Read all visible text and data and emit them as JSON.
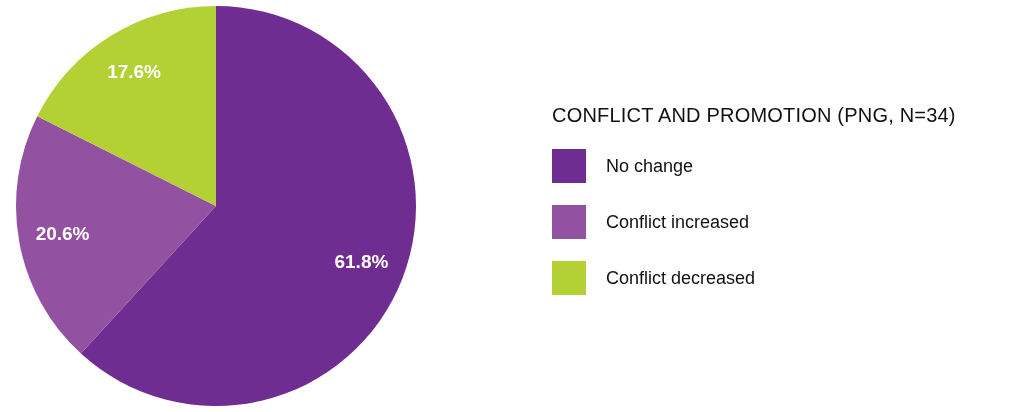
{
  "chart_data": {
    "type": "pie",
    "legend_title": "CONFLICT AND PROMOTION (PNG, N=34)",
    "categories": [
      "No change",
      "Conflict increased",
      "Conflict decreased"
    ],
    "values": [
      61.8,
      20.6,
      17.6
    ],
    "colors": [
      "#6f2c91",
      "#9251a1",
      "#b3d135"
    ],
    "value_labels": [
      "61.8%",
      "20.6%",
      "17.6%"
    ],
    "legend": "right"
  }
}
